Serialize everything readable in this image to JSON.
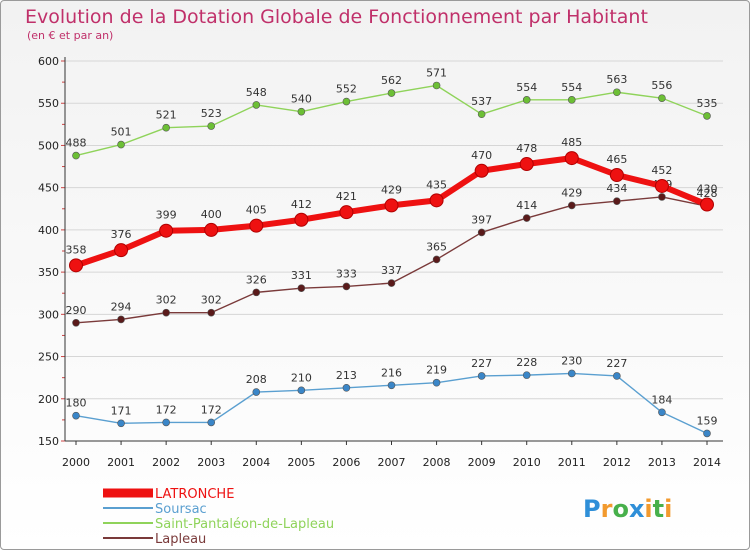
{
  "chart_data": {
    "type": "line",
    "title": "Evolution de la Dotation Globale de Fonctionnement par Habitant",
    "subtitle": "(en € et par an)",
    "xlabel": "",
    "ylabel": "",
    "ylim": [
      150,
      600
    ],
    "yticks": [
      150,
      200,
      250,
      300,
      350,
      400,
      450,
      500,
      550,
      600
    ],
    "x": [
      "2000",
      "2001",
      "2002",
      "2003",
      "2004",
      "2005",
      "2006",
      "2007",
      "2008",
      "2009",
      "2010",
      "2011",
      "2012",
      "2013",
      "2014"
    ],
    "series": [
      {
        "name": "Saint-Pantaléon-de-Lapleau",
        "color": "#8fd35a",
        "marker": "#6cbf35",
        "values": [
          488,
          501,
          521,
          523,
          548,
          540,
          552,
          562,
          571,
          537,
          554,
          554,
          563,
          556,
          535
        ]
      },
      {
        "name": "Lapleau",
        "color": "#7a3a3a",
        "marker": "#5a1a1a",
        "values": [
          290,
          294,
          302,
          302,
          326,
          331,
          333,
          337,
          365,
          397,
          414,
          429,
          434,
          439,
          428
        ]
      },
      {
        "name": "Soursac",
        "color": "#5a9fd0",
        "marker": "#3a86c8",
        "values": [
          180,
          171,
          172,
          172,
          208,
          210,
          213,
          216,
          219,
          227,
          228,
          230,
          227,
          184,
          159
        ]
      },
      {
        "name": "LATRONCHE",
        "color": "#ee1111",
        "marker": "#ee1111",
        "values": [
          358,
          376,
          399,
          400,
          405,
          412,
          421,
          429,
          435,
          470,
          478,
          485,
          465,
          452,
          430
        ]
      }
    ],
    "legend": [
      {
        "name": "LATRONCHE",
        "color": "#ee1111"
      },
      {
        "name": "Soursac",
        "color": "#5a9fd0"
      },
      {
        "name": "Saint-Pantaléon-de-Lapleau",
        "color": "#8fd35a"
      },
      {
        "name": "Lapleau",
        "color": "#7a3a3a"
      }
    ],
    "legend_position": "bottom-left"
  },
  "logo": {
    "letters": [
      "P",
      "r",
      "o",
      "x",
      "i",
      "t",
      "i"
    ],
    "colors": [
      "#2f8fd8",
      "#f29a2e",
      "#47b04b",
      "#2f8fd8",
      "#f29a2e",
      "#47b04b",
      "#f29a2e"
    ]
  }
}
